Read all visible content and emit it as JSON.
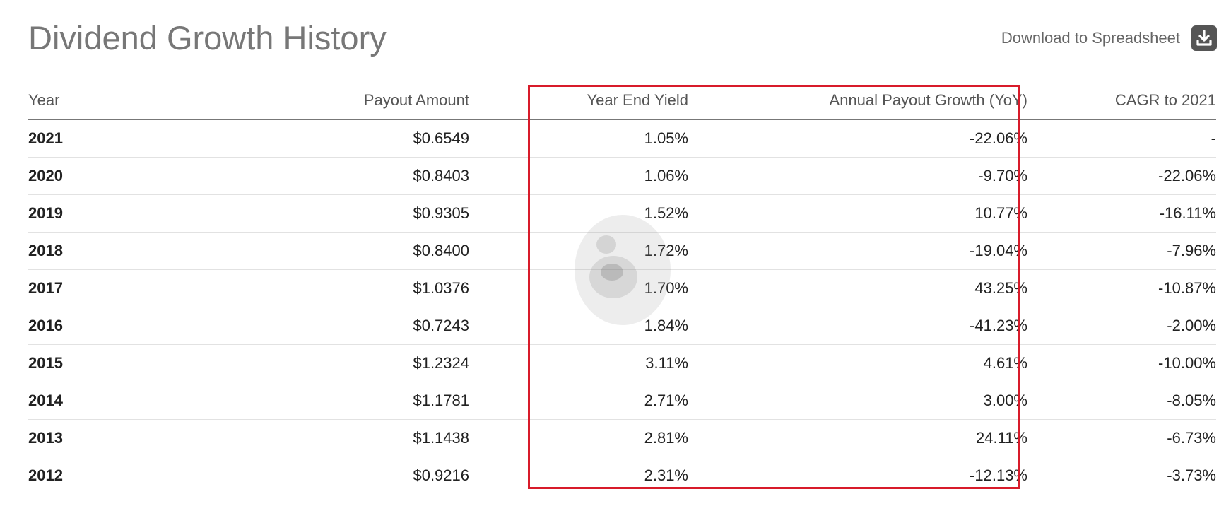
{
  "header": {
    "title": "Dividend Growth History",
    "download_label": "Download to Spreadsheet",
    "download_icon": "download-icon"
  },
  "table": {
    "columns": [
      "Year",
      "Payout Amount",
      "Year End Yield",
      "Annual Payout Growth (YoY)",
      "CAGR to 2021"
    ],
    "rows": [
      [
        "2021",
        "$0.6549",
        "1.05%",
        "-22.06%",
        "-"
      ],
      [
        "2020",
        "$0.8403",
        "1.06%",
        "-9.70%",
        "-22.06%"
      ],
      [
        "2019",
        "$0.9305",
        "1.52%",
        "10.77%",
        "-16.11%"
      ],
      [
        "2018",
        "$0.8400",
        "1.72%",
        "-19.04%",
        "-7.96%"
      ],
      [
        "2017",
        "$1.0376",
        "1.70%",
        "43.25%",
        "-10.87%"
      ],
      [
        "2016",
        "$0.7243",
        "1.84%",
        "-41.23%",
        "-2.00%"
      ],
      [
        "2015",
        "$1.2324",
        "3.11%",
        "4.61%",
        "-10.00%"
      ],
      [
        "2014",
        "$1.1781",
        "2.71%",
        "3.00%",
        "-8.05%"
      ],
      [
        "2013",
        "$1.1438",
        "2.81%",
        "24.11%",
        "-6.73%"
      ],
      [
        "2012",
        "$0.9216",
        "2.31%",
        "-12.13%",
        "-3.73%"
      ]
    ]
  },
  "colors": {
    "highlight_border": "#d81b2a",
    "title_text": "#777777",
    "header_rule": "#777777",
    "row_rule": "#e2e2e2"
  }
}
